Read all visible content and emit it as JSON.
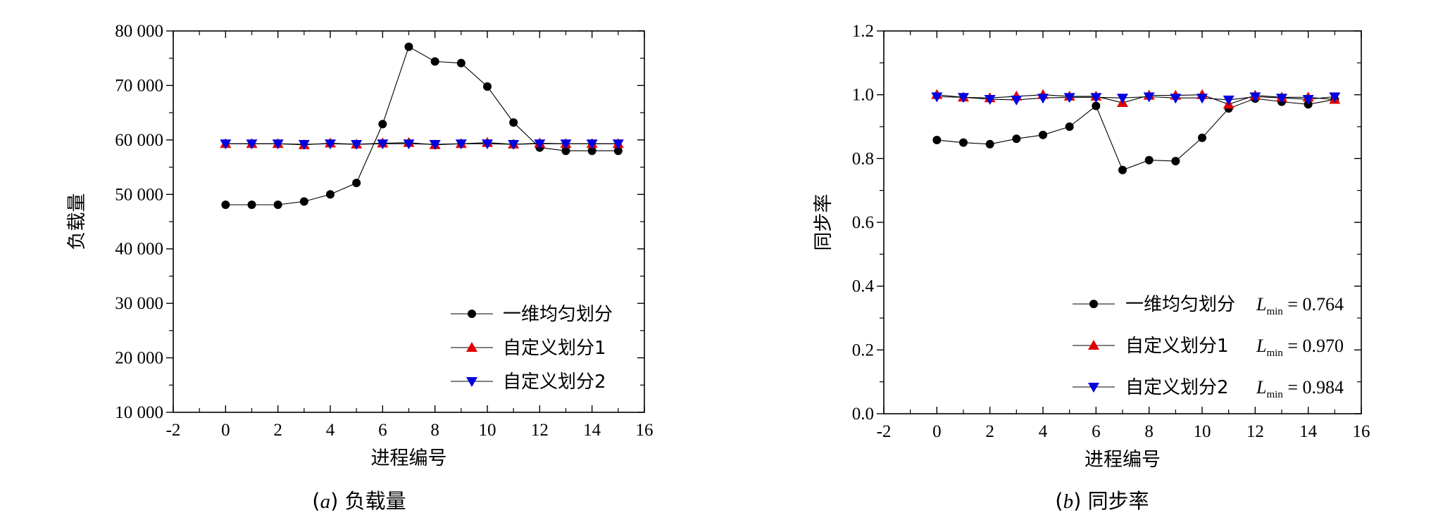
{
  "chart_data": [
    {
      "type": "line",
      "id": "load",
      "caption_letter": "a",
      "caption_text": "负载量",
      "xlabel": "进程编号",
      "ylabel": "负载量",
      "xlim": [
        -2,
        16
      ],
      "ylim": [
        10000,
        80000
      ],
      "xticks": [
        -2,
        0,
        2,
        4,
        6,
        8,
        10,
        12,
        14,
        16
      ],
      "xtick_labels": [
        "-2",
        "0",
        "2",
        "4",
        "6",
        "8",
        "10",
        "12",
        "14",
        "16"
      ],
      "yticks": [
        10000,
        20000,
        30000,
        40000,
        50000,
        60000,
        70000,
        80000
      ],
      "ytick_labels": [
        "10 000",
        "20 000",
        "30 000",
        "40 000",
        "50 000",
        "60 000",
        "70 000",
        "80 000"
      ],
      "x": [
        0,
        1,
        2,
        3,
        4,
        5,
        6,
        7,
        8,
        9,
        10,
        11,
        12,
        13,
        14,
        15
      ],
      "series": [
        {
          "name": "一维均匀划分",
          "marker": "circle",
          "color": "#000000",
          "values": [
            48100,
            48100,
            48100,
            48700,
            50000,
            52100,
            62900,
            77100,
            74400,
            74100,
            69800,
            63200,
            58600,
            58000,
            58000,
            58000
          ]
        },
        {
          "name": "自定义划分1",
          "marker": "triangle-up",
          "color": "#e00000",
          "values": [
            59300,
            59300,
            59300,
            59100,
            59400,
            59200,
            59400,
            59500,
            59100,
            59300,
            59500,
            59200,
            59400,
            59300,
            59300,
            59300
          ]
        },
        {
          "name": "自定义划分2",
          "marker": "triangle-down",
          "color": "#0000e0",
          "values": [
            59300,
            59300,
            59300,
            59200,
            59300,
            59200,
            59300,
            59300,
            59200,
            59300,
            59300,
            59200,
            59300,
            59300,
            59300,
            59300
          ]
        }
      ],
      "legend": [
        {
          "label": "一维均匀划分",
          "lmin": ""
        },
        {
          "label": "自定义划分1",
          "lmin": ""
        },
        {
          "label": "自定义划分2",
          "lmin": ""
        }
      ],
      "legend_position": "bottom-right"
    },
    {
      "type": "line",
      "id": "sync",
      "caption_letter": "b",
      "caption_text": "同步率",
      "xlabel": "进程编号",
      "ylabel": "同步率",
      "xlim": [
        -2,
        16
      ],
      "ylim": [
        0.0,
        1.2
      ],
      "xticks": [
        -2,
        0,
        2,
        4,
        6,
        8,
        10,
        12,
        14,
        16
      ],
      "xtick_labels": [
        "-2",
        "0",
        "2",
        "4",
        "6",
        "8",
        "10",
        "12",
        "14",
        "16"
      ],
      "yticks": [
        0.0,
        0.2,
        0.4,
        0.6,
        0.8,
        1.0,
        1.2
      ],
      "ytick_labels": [
        "0.0",
        "0.2",
        "0.4",
        "0.6",
        "0.8",
        "1.0",
        "1.2"
      ],
      "x": [
        0,
        1,
        2,
        3,
        4,
        5,
        6,
        7,
        8,
        9,
        10,
        11,
        12,
        13,
        14,
        15
      ],
      "series": [
        {
          "name": "一维均匀划分",
          "marker": "circle",
          "color": "#000000",
          "values": [
            0.858,
            0.85,
            0.845,
            0.862,
            0.874,
            0.9,
            0.965,
            0.764,
            0.795,
            0.792,
            0.865,
            0.957,
            0.988,
            0.978,
            0.97,
            0.985
          ]
        },
        {
          "name": "自定义划分1",
          "marker": "triangle-up",
          "color": "#e00000",
          "values": [
            1.0,
            0.992,
            0.99,
            0.995,
            1.0,
            0.995,
            0.995,
            0.975,
            0.998,
            0.998,
            1.0,
            0.97,
            0.998,
            0.992,
            0.992,
            0.985
          ]
        },
        {
          "name": "自定义划分2",
          "marker": "triangle-down",
          "color": "#0000e0",
          "values": [
            0.994,
            0.992,
            0.986,
            0.984,
            0.99,
            0.992,
            0.992,
            0.99,
            0.994,
            0.99,
            0.99,
            0.984,
            0.994,
            0.99,
            0.986,
            0.994
          ]
        }
      ],
      "legend": [
        {
          "label": "一维均匀划分",
          "lmin": "0.764"
        },
        {
          "label": "自定义划分1",
          "lmin": "0.970"
        },
        {
          "label": "自定义划分2",
          "lmin": "0.984"
        }
      ],
      "lmin_symbol": "L",
      "lmin_subscript": "min",
      "legend_position": "bottom-right"
    }
  ]
}
